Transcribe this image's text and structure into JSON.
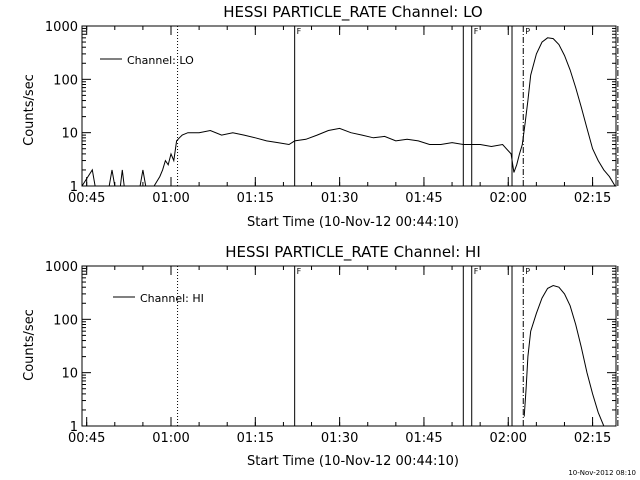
{
  "footer_stamp": "10-Nov-2012 08:10",
  "chart_data": [
    {
      "type": "line",
      "title": "HESSI PARTICLE_RATE Channel: LO",
      "xlabel": "Start Time (10-Nov-12 00:44:10)",
      "ylabel": "Counts/sec",
      "yscale": "log",
      "ylim": [
        1,
        1000
      ],
      "xlim_minutes": [
        0,
        95
      ],
      "x_ticks": [
        "00:45",
        "01:00",
        "01:15",
        "01:30",
        "01:45",
        "02:00",
        "02:15"
      ],
      "y_ticks": [
        "1",
        "10",
        "100",
        "1000"
      ],
      "legend": "top-left",
      "series": [
        {
          "name": "Channel: LO",
          "x": [
            "00:44:10",
            "00:46:00",
            "00:46:30",
            "00:47:00",
            "00:49:00",
            "00:49:30",
            "00:50:00",
            "00:51:00",
            "00:51:20",
            "00:51:40",
            "00:54:30",
            "00:55:00",
            "00:55:30",
            "00:57:00",
            "00:58:00",
            "00:58:30",
            "00:59:00",
            "00:59:30",
            "01:00:00",
            "01:00:30",
            "01:01:00",
            "01:01:30",
            "01:02:00",
            "01:03:00",
            "01:05:00",
            "01:07:00",
            "01:09:00",
            "01:11:00",
            "01:13:00",
            "01:15:00",
            "01:17:00",
            "01:19:00",
            "01:21:00",
            "01:22:00",
            "01:24:00",
            "01:26:00",
            "01:28:00",
            "01:30:00",
            "01:32:00",
            "01:34:00",
            "01:36:00",
            "01:38:00",
            "01:40:00",
            "01:42:00",
            "01:44:00",
            "01:46:00",
            "01:48:00",
            "01:50:00",
            "01:52:00",
            "01:53:30",
            "01:55:00",
            "01:57:00",
            "01:59:00",
            "02:00:30",
            "02:01:00",
            "02:01:30",
            "02:02:00",
            "02:02:30",
            "02:03:00",
            "02:03:30",
            "02:04:00",
            "02:05:00",
            "02:06:00",
            "02:07:00",
            "02:08:00",
            "02:09:00",
            "02:10:00",
            "02:11:00",
            "02:12:00",
            "02:13:00",
            "02:14:00",
            "02:15:00",
            "02:16:00",
            "02:17:00",
            "02:18:00",
            "02:19:00",
            "02:19:30"
          ],
          "values": [
            1,
            2,
            1,
            1,
            1,
            2,
            1,
            1,
            2,
            1,
            1,
            2,
            1,
            1,
            1.5,
            2,
            3,
            2.5,
            4,
            3,
            7,
            8,
            9,
            10,
            10,
            11,
            9,
            10,
            9,
            8,
            7,
            6.5,
            6,
            7,
            7.5,
            9,
            11,
            12,
            10,
            9,
            8,
            8.5,
            7,
            7.5,
            7,
            6,
            6,
            6.5,
            6,
            6,
            6,
            5.5,
            6,
            4,
            1.8,
            2.5,
            4,
            6,
            15,
            40,
            120,
            300,
            500,
            600,
            580,
            450,
            280,
            150,
            70,
            30,
            12,
            5,
            3,
            2,
            1.5,
            1,
            0.8
          ]
        }
      ],
      "markers": [
        {
          "time": "01:01:10",
          "style": "dotted",
          "flag": ""
        },
        {
          "time": "01:22:00",
          "style": "solid",
          "flag": "F"
        },
        {
          "time": "01:52:00",
          "style": "solid",
          "flag": ""
        },
        {
          "time": "01:53:30",
          "style": "solid",
          "flag": "F"
        },
        {
          "time": "02:00:40",
          "style": "solid",
          "flag": ""
        },
        {
          "time": "02:02:40",
          "style": "dashdot",
          "flag": "P"
        },
        {
          "time": "02:19:30",
          "style": "dashdot",
          "flag": ""
        }
      ]
    },
    {
      "type": "line",
      "title": "HESSI PARTICLE_RATE Channel: HI",
      "xlabel": "Start Time (10-Nov-12 00:44:10)",
      "ylabel": "Counts/sec",
      "yscale": "log",
      "ylim": [
        1,
        1000
      ],
      "xlim_minutes": [
        0,
        95
      ],
      "x_ticks": [
        "00:45",
        "01:00",
        "01:15",
        "01:30",
        "01:45",
        "02:00",
        "02:15"
      ],
      "y_ticks": [
        "1",
        "10",
        "100",
        "1000"
      ],
      "legend": "top-left",
      "series": [
        {
          "name": "Channel: HI",
          "x": [
            "02:02:50",
            "02:03:10",
            "02:03:30",
            "02:04:00",
            "02:05:00",
            "02:06:00",
            "02:07:00",
            "02:08:00",
            "02:09:00",
            "02:10:00",
            "02:11:00",
            "02:12:00",
            "02:13:00",
            "02:14:00",
            "02:15:00",
            "02:16:00",
            "02:17:00"
          ],
          "values": [
            1.5,
            5,
            20,
            60,
            130,
            250,
            380,
            430,
            400,
            300,
            180,
            80,
            30,
            10,
            4,
            1.8,
            1
          ]
        }
      ],
      "markers": [
        {
          "time": "01:01:10",
          "style": "dotted",
          "flag": ""
        },
        {
          "time": "01:22:00",
          "style": "solid",
          "flag": "F"
        },
        {
          "time": "01:52:00",
          "style": "solid",
          "flag": ""
        },
        {
          "time": "01:53:30",
          "style": "solid",
          "flag": "F"
        },
        {
          "time": "02:00:40",
          "style": "solid",
          "flag": ""
        },
        {
          "time": "02:02:40",
          "style": "dashdot",
          "flag": "P"
        },
        {
          "time": "02:19:30",
          "style": "dashdot",
          "flag": ""
        }
      ]
    }
  ]
}
